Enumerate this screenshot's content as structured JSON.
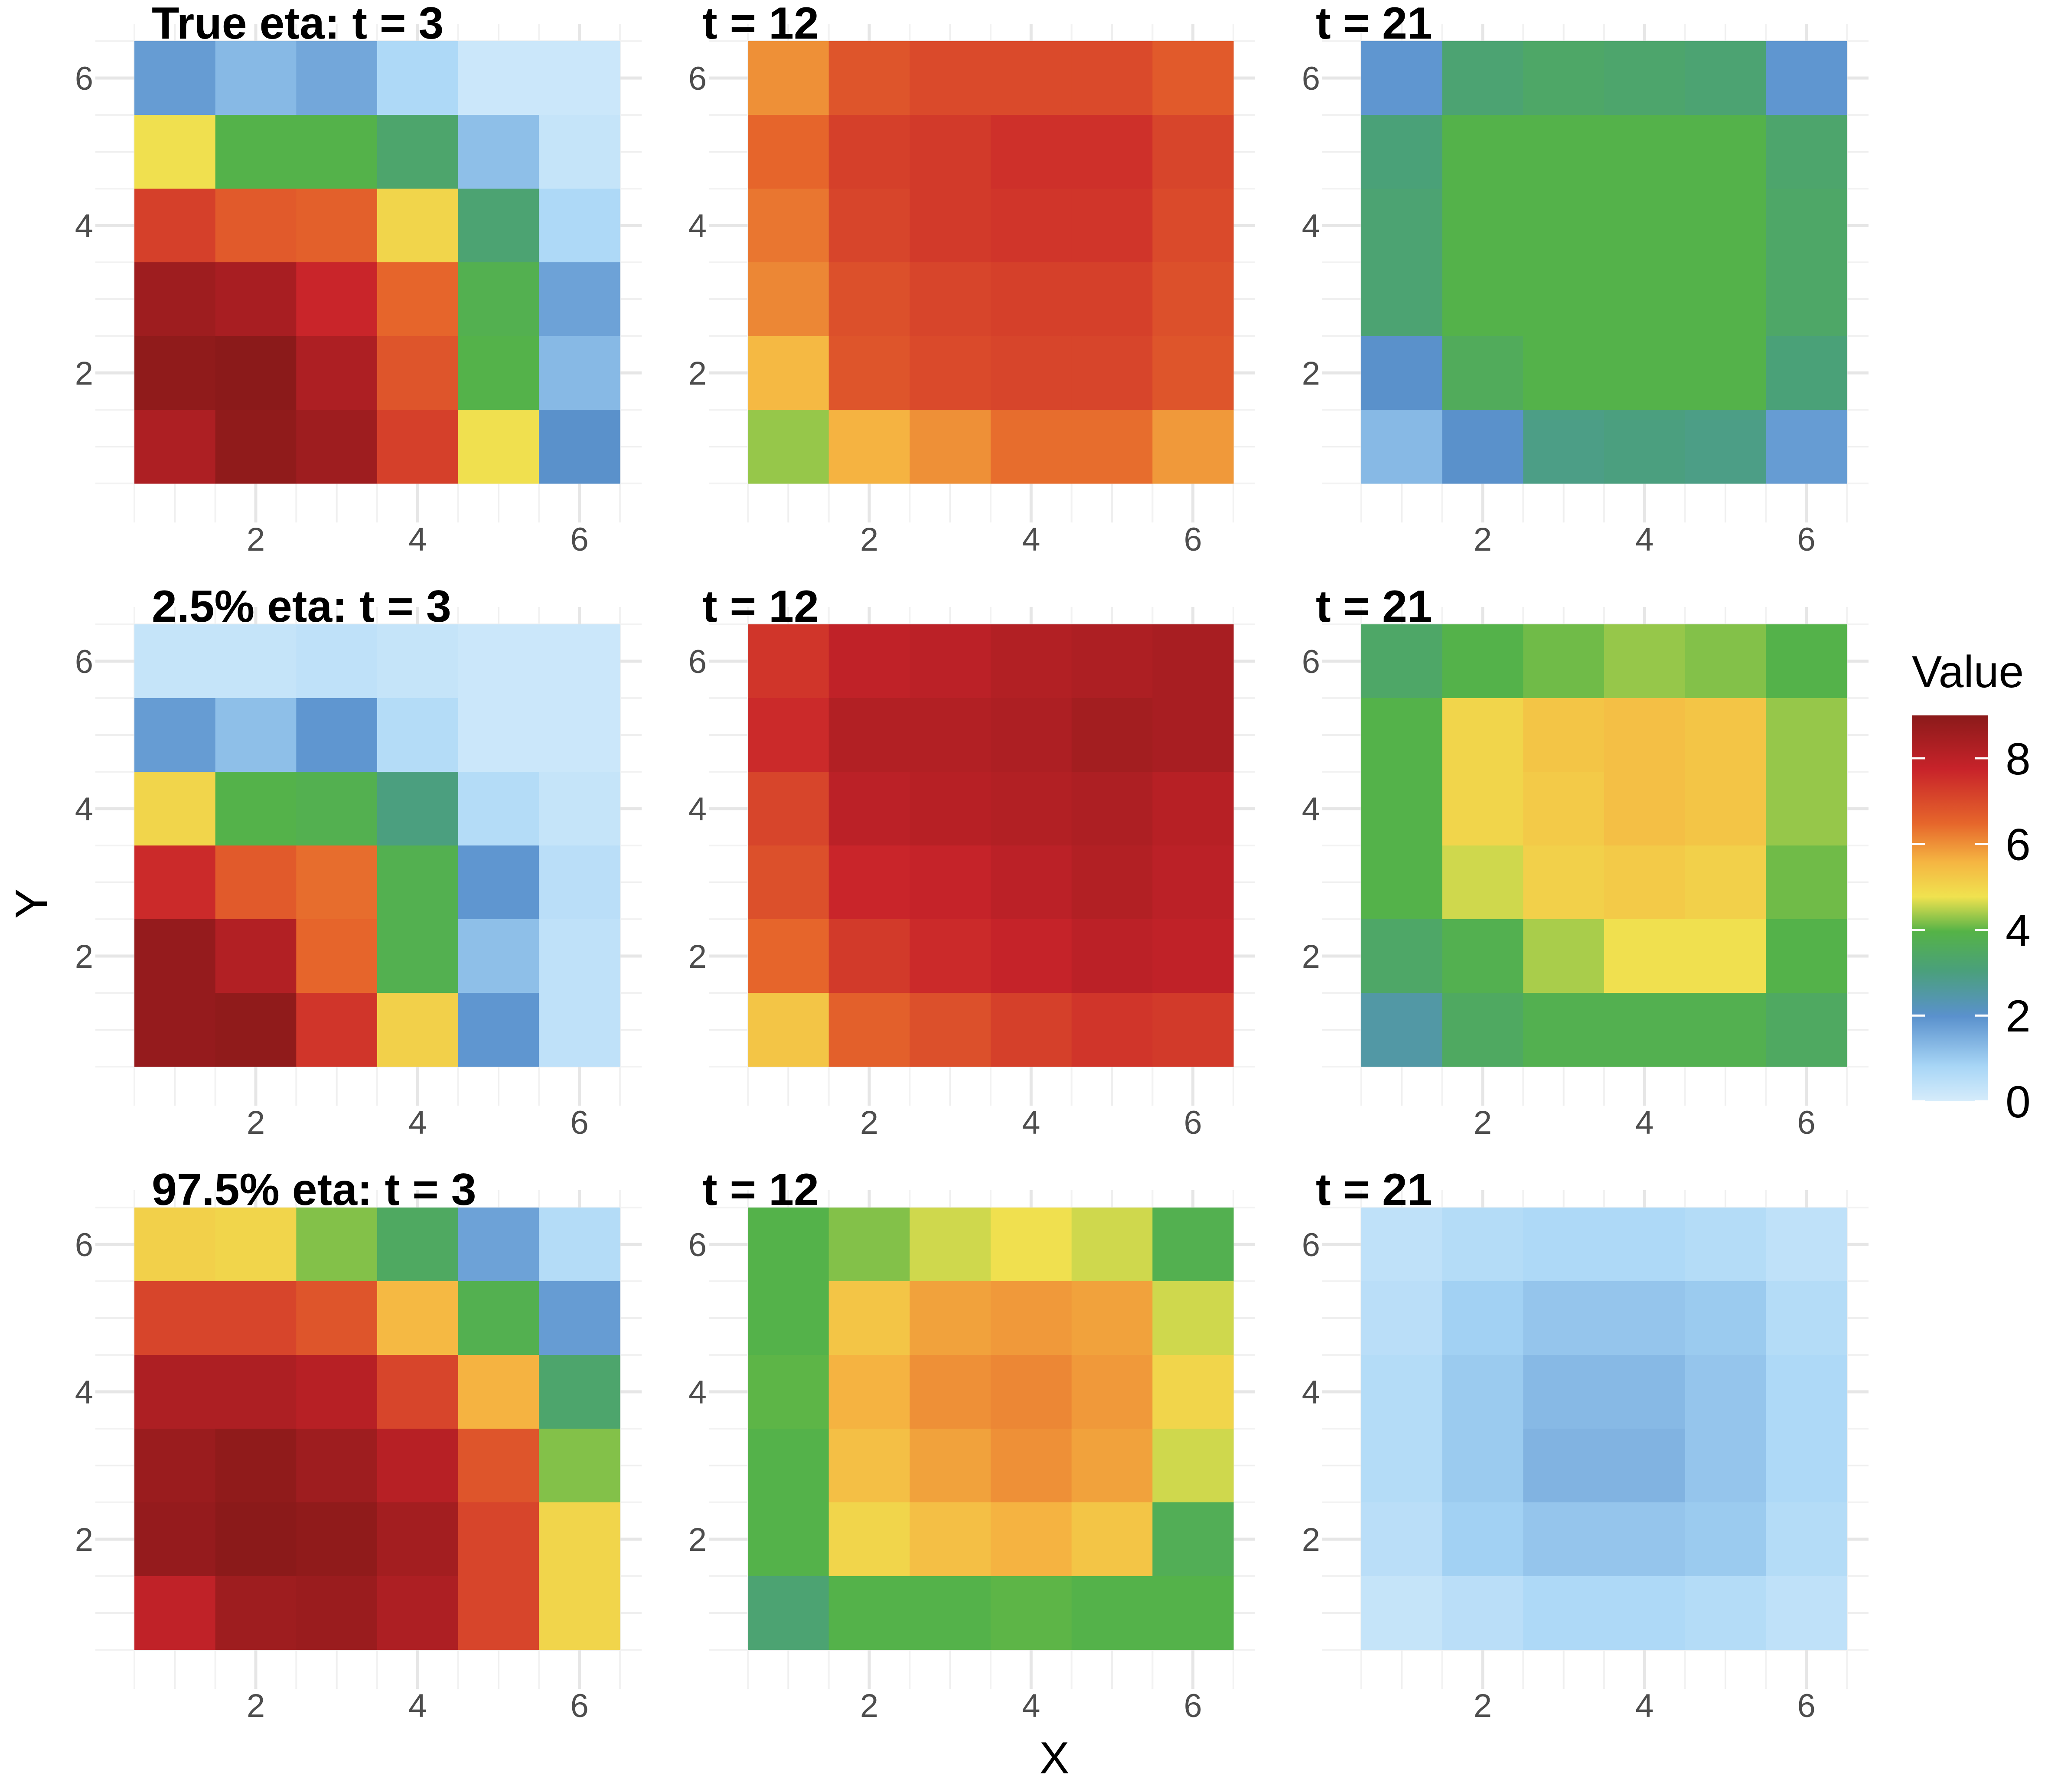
{
  "chart_data": {
    "type": "heatmap",
    "layout": "3x3 grid of panels",
    "xlabel": "X",
    "ylabel": "Y",
    "x_ticks": [
      "2",
      "4",
      "6"
    ],
    "y_ticks": [
      "2",
      "4",
      "6"
    ],
    "xlim": [
      0.5,
      6.5
    ],
    "ylim": [
      0.5,
      6.5
    ],
    "grid": true,
    "legend": {
      "title": "Value",
      "position": "right",
      "range": [
        0,
        9
      ],
      "ticks": [
        "0",
        "2",
        "4",
        "6",
        "8"
      ],
      "tick_values": [
        0,
        2,
        4,
        6,
        8
      ],
      "colors": [
        "#d6ecfb",
        "#a8d6f6",
        "#5a91cd",
        "#4aa07a",
        "#55b347",
        "#f0e24f",
        "#f5b542",
        "#e6662b",
        "#c8232a",
        "#8b1a1a"
      ],
      "color_positions": [
        0,
        0.09,
        0.22,
        0.34,
        0.44,
        0.53,
        0.62,
        0.72,
        0.86,
        1
      ]
    },
    "panels": [
      {
        "title": "True eta: t = 3",
        "rows": [
          [
            1.8,
            1.3,
            1.6,
            0.7,
            0.2,
            0.2
          ],
          [
            4.8,
            3.9,
            3.9,
            3.3,
            1.2,
            0.3
          ],
          [
            7.2,
            6.7,
            6.6,
            5.0,
            3.2,
            0.7
          ],
          [
            8.6,
            8.4,
            7.7,
            6.5,
            3.8,
            1.7
          ],
          [
            8.9,
            9.0,
            8.3,
            6.8,
            3.9,
            1.3
          ],
          [
            8.3,
            8.9,
            8.6,
            7.2,
            4.8,
            2.0
          ]
        ]
      },
      {
        "title": "t = 12",
        "rows": [
          [
            6.0,
            6.8,
            7.0,
            7.0,
            7.0,
            6.7
          ],
          [
            6.5,
            7.2,
            7.3,
            7.5,
            7.5,
            7.1
          ],
          [
            6.3,
            7.1,
            7.3,
            7.4,
            7.4,
            7.0
          ],
          [
            6.1,
            6.9,
            7.1,
            7.2,
            7.2,
            6.9
          ],
          [
            5.5,
            6.8,
            7.0,
            7.1,
            7.1,
            6.8
          ],
          [
            4.3,
            5.6,
            6.0,
            6.4,
            6.4,
            5.9
          ]
        ]
      },
      {
        "title": "t = 21",
        "rows": [
          [
            1.9,
            3.2,
            3.4,
            3.3,
            3.2,
            1.9
          ],
          [
            3.1,
            3.9,
            3.9,
            3.9,
            3.9,
            3.3
          ],
          [
            3.2,
            3.9,
            3.9,
            3.9,
            3.9,
            3.4
          ],
          [
            3.2,
            3.9,
            3.9,
            3.9,
            3.9,
            3.4
          ],
          [
            2.0,
            3.6,
            3.9,
            3.9,
            3.9,
            3.1
          ],
          [
            1.3,
            2.0,
            2.9,
            3.0,
            2.9,
            1.8
          ]
        ]
      },
      {
        "title": "2.5% eta: t = 3",
        "rows": [
          [
            0.3,
            0.3,
            0.4,
            0.3,
            0.2,
            0.2
          ],
          [
            1.8,
            1.2,
            1.9,
            0.6,
            0.2,
            0.2
          ],
          [
            5.0,
            3.9,
            3.8,
            3.0,
            0.6,
            0.3
          ],
          [
            7.6,
            6.7,
            6.4,
            3.8,
            1.9,
            0.5
          ],
          [
            8.8,
            8.2,
            6.5,
            3.8,
            1.2,
            0.4
          ],
          [
            8.8,
            8.9,
            7.4,
            5.1,
            1.9,
            0.4
          ]
        ]
      },
      {
        "title": "t = 12",
        "rows": [
          [
            7.4,
            7.9,
            8.0,
            8.2,
            8.3,
            8.4
          ],
          [
            7.6,
            8.2,
            8.2,
            8.3,
            8.5,
            8.4
          ],
          [
            7.1,
            8.0,
            8.1,
            8.2,
            8.3,
            8.1
          ],
          [
            6.9,
            7.7,
            7.8,
            8.0,
            8.2,
            8.0
          ],
          [
            6.5,
            7.3,
            7.6,
            7.8,
            8.0,
            7.9
          ],
          [
            5.3,
            6.6,
            6.9,
            7.2,
            7.4,
            7.3
          ]
        ]
      },
      {
        "title": "t = 21",
        "rows": [
          [
            3.4,
            3.9,
            4.1,
            4.3,
            4.2,
            3.9
          ],
          [
            3.9,
            5.0,
            5.3,
            5.4,
            5.3,
            4.3
          ],
          [
            3.9,
            5.0,
            5.2,
            5.4,
            5.3,
            4.3
          ],
          [
            3.9,
            4.6,
            5.1,
            5.2,
            5.1,
            4.1
          ],
          [
            3.4,
            3.8,
            4.4,
            4.8,
            4.8,
            3.9
          ],
          [
            2.5,
            3.5,
            3.8,
            3.8,
            3.8,
            3.5
          ]
        ]
      },
      {
        "title": "97.5% eta: t = 3",
        "rows": [
          [
            5.1,
            5.0,
            4.2,
            3.5,
            1.7,
            0.6
          ],
          [
            7.1,
            7.1,
            6.8,
            5.5,
            3.8,
            1.8
          ],
          [
            8.3,
            8.3,
            8.1,
            7.1,
            5.6,
            3.3
          ],
          [
            8.7,
            8.9,
            8.6,
            8.1,
            6.8,
            4.2
          ],
          [
            8.8,
            9.0,
            8.9,
            8.5,
            7.1,
            5.0
          ],
          [
            7.9,
            8.6,
            8.7,
            8.3,
            7.1,
            5.0
          ]
        ]
      },
      {
        "title": "t = 12",
        "rows": [
          [
            3.9,
            4.2,
            4.6,
            4.8,
            4.6,
            3.8
          ],
          [
            3.9,
            5.3,
            5.8,
            5.9,
            5.8,
            4.6
          ],
          [
            4.0,
            5.6,
            6.0,
            6.1,
            5.9,
            5.0
          ],
          [
            3.9,
            5.4,
            5.8,
            6.0,
            5.8,
            4.6
          ],
          [
            3.9,
            5.0,
            5.4,
            5.6,
            5.3,
            3.7
          ],
          [
            3.2,
            3.9,
            3.9,
            4.0,
            3.9,
            3.9
          ]
        ]
      },
      {
        "title": "t = 21",
        "rows": [
          [
            0.4,
            0.6,
            0.7,
            0.7,
            0.6,
            0.4
          ],
          [
            0.5,
            0.9,
            1.1,
            1.1,
            1.0,
            0.6
          ],
          [
            0.6,
            1.0,
            1.3,
            1.3,
            1.1,
            0.7
          ],
          [
            0.6,
            1.0,
            1.4,
            1.4,
            1.1,
            0.7
          ],
          [
            0.5,
            0.9,
            1.1,
            1.1,
            1.0,
            0.6
          ],
          [
            0.3,
            0.5,
            0.7,
            0.7,
            0.6,
            0.4
          ]
        ]
      }
    ]
  }
}
